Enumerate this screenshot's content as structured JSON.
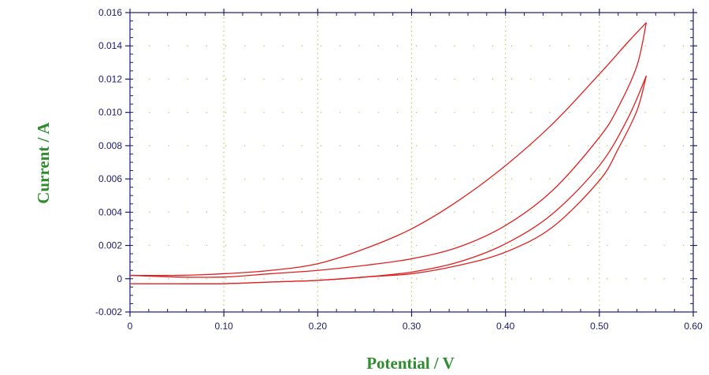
{
  "chart_data": {
    "type": "line",
    "title": "",
    "xlabel": "Potential / V",
    "ylabel": "Current / A",
    "xlim": [
      0,
      0.6
    ],
    "ylim": [
      -0.002,
      0.016
    ],
    "x_ticks": [
      {
        "value": 0,
        "label": "0"
      },
      {
        "value": 0.1,
        "label": "0.10"
      },
      {
        "value": 0.2,
        "label": "0.20"
      },
      {
        "value": 0.3,
        "label": "0.30"
      },
      {
        "value": 0.4,
        "label": "0.40"
      },
      {
        "value": 0.5,
        "label": "0.50"
      },
      {
        "value": 0.6,
        "label": "0.60"
      }
    ],
    "y_ticks": [
      {
        "value": -0.002,
        "label": "-0.002"
      },
      {
        "value": 0,
        "label": "0"
      },
      {
        "value": 0.002,
        "label": "0.002"
      },
      {
        "value": 0.004,
        "label": "0.004"
      },
      {
        "value": 0.006,
        "label": "0.006"
      },
      {
        "value": 0.008,
        "label": "0.008"
      },
      {
        "value": 0.01,
        "label": "0.010"
      },
      {
        "value": 0.012,
        "label": "0.012"
      },
      {
        "value": 0.014,
        "label": "0.014"
      },
      {
        "value": 0.016,
        "label": "0.016"
      }
    ],
    "grid": "dotted",
    "line_color": "#e02020",
    "axis_color": "#1a1a6e",
    "grid_color": "#b8b84a",
    "label_color": "#2e8b2e",
    "series": [
      {
        "x": [
          0.0,
          0.05,
          0.1,
          0.15,
          0.2,
          0.25,
          0.3,
          0.35,
          0.4,
          0.45,
          0.5,
          0.53,
          0.55
        ],
        "y": [
          0.0002,
          0.0002,
          0.0003,
          0.0005,
          0.0009,
          0.0018,
          0.003,
          0.0047,
          0.0068,
          0.0093,
          0.0123,
          0.0142,
          0.0154
        ]
      },
      {
        "x": [
          0.55,
          0.54,
          0.52,
          0.5,
          0.45,
          0.4,
          0.35,
          0.3,
          0.25,
          0.2,
          0.15,
          0.1,
          0.05,
          0.0
        ],
        "y": [
          0.0154,
          0.0128,
          0.0103,
          0.0085,
          0.0053,
          0.0032,
          0.0019,
          0.0012,
          0.0008,
          0.0005,
          0.0003,
          0.0001,
          0.0001,
          0.0002
        ]
      },
      {
        "x": [
          0.0,
          0.05,
          0.1,
          0.15,
          0.2,
          0.25,
          0.3,
          0.35,
          0.4,
          0.45,
          0.5,
          0.53,
          0.55
        ],
        "y": [
          -0.0003,
          -0.0003,
          -0.0003,
          -0.0002,
          -0.0001,
          0.0001,
          0.0004,
          0.001,
          0.0021,
          0.0039,
          0.0068,
          0.0096,
          0.0122
        ]
      },
      {
        "x": [
          0.55,
          0.54,
          0.52,
          0.5,
          0.45,
          0.4,
          0.35,
          0.3,
          0.25,
          0.2,
          0.15,
          0.1,
          0.05,
          0.0
        ],
        "y": [
          0.0122,
          0.0101,
          0.0078,
          0.0059,
          0.0031,
          0.0016,
          0.0008,
          0.0003,
          0.0001,
          -0.0001,
          -0.0002,
          -0.0003,
          -0.0003,
          -0.0003
        ]
      }
    ]
  }
}
